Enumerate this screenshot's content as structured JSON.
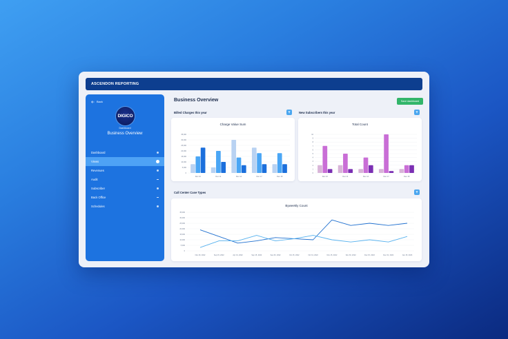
{
  "app": {
    "title": "ASCENDON REPORTING"
  },
  "sidebar": {
    "back_label": "Back",
    "logo_text": "DIGICO",
    "subtitle": "Dashboard",
    "title": "Business Overview",
    "items": [
      {
        "label": "Dashboard",
        "marker": "dot"
      },
      {
        "label": "Views",
        "marker": "dot",
        "active": true
      },
      {
        "label": "Revenues",
        "marker": "dot"
      },
      {
        "label": "Audit",
        "marker": "dash"
      },
      {
        "label": "Subscriber",
        "marker": "dot"
      },
      {
        "label": "Back Office",
        "marker": "dash"
      },
      {
        "label": "Schedules",
        "marker": "dot"
      }
    ]
  },
  "main": {
    "title": "Business Overview",
    "save_label": "Save dashboard",
    "sections": {
      "billed": "Billed Charges this year",
      "subscribers": "New Subscribers this year",
      "callcenter": "Call Center Case Types"
    }
  },
  "colors": {
    "accent": "#1d73e0",
    "brand": "#0d3e8f",
    "save": "#32b56a"
  },
  "chart_data": [
    {
      "type": "bar",
      "title": "Charge Value Sum",
      "categories": [
        "Dec 10",
        "Dec 11",
        "Dec 14",
        "Dec 17",
        "Dec 18"
      ],
      "ylim": [
        0,
        35000
      ],
      "yticks": [
        "0",
        "5,000",
        "10,000",
        "15,000",
        "20,000",
        "25,000",
        "30,000",
        "35,000"
      ],
      "series": [
        {
          "color": "#b8d2f2",
          "values": [
            8000,
            5000,
            30000,
            23000,
            8000
          ]
        },
        {
          "color": "#4aa6f5",
          "values": [
            15000,
            20000,
            14000,
            18000,
            18000
          ]
        },
        {
          "color": "#1b6fdc",
          "values": [
            23000,
            10000,
            7000,
            8000,
            8000
          ]
        }
      ]
    },
    {
      "type": "bar",
      "title": "Total Count",
      "categories": [
        "Dec 10",
        "Dec 11",
        "Dec 14",
        "Dec 17",
        "Dec 18"
      ],
      "ylim": [
        0,
        10
      ],
      "yticks": [
        "0",
        "1",
        "2",
        "3",
        "4",
        "5",
        "6",
        "7",
        "8",
        "9",
        "10"
      ],
      "series": [
        {
          "color": "#d8b4d8",
          "values": [
            2,
            2,
            1,
            1,
            1
          ]
        },
        {
          "color": "#c96ed6",
          "values": [
            7,
            5,
            4,
            10,
            2
          ]
        },
        {
          "color": "#7b2fb3",
          "values": [
            1,
            1,
            2,
            0.5,
            2
          ]
        }
      ]
    },
    {
      "type": "line",
      "title": "Byweekly Count",
      "categories": [
        "Nov 30, 2022",
        "Sep 15, 2022",
        "Apr 01, 2022",
        "Sep 15, 2022",
        "Sep 30, 2022",
        "Oct 15, 2022",
        "Oct 31, 2022",
        "Nov 15, 2022",
        "Nov 30, 2022",
        "Dec 15, 2022",
        "Dec 31, 2022",
        "Jan 15, 2023"
      ],
      "ylim": [
        0,
        35000
      ],
      "yticks": [
        "0",
        "5,000",
        "10,000",
        "15,000",
        "20,000",
        "25,000",
        "30,000",
        "35,000"
      ],
      "series": [
        {
          "color": "#1e6fcf",
          "values": [
            19000,
            13000,
            7000,
            9000,
            12000,
            11000,
            10000,
            28000,
            23000,
            25000,
            23000,
            25000
          ]
        },
        {
          "color": "#55b1ee",
          "values": [
            3000,
            9000,
            9000,
            14000,
            9000,
            11000,
            14000,
            10000,
            8000,
            10000,
            8000,
            13000
          ]
        }
      ]
    }
  ]
}
